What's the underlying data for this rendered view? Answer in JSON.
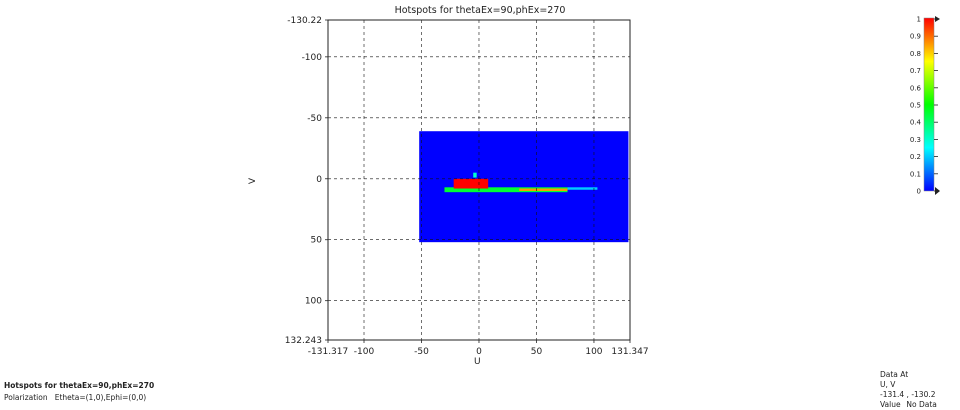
{
  "chart_data": {
    "type": "heatmap",
    "title": "Hotspots for thetaEx=90,phEx=270",
    "xlabel": "U",
    "ylabel": "V",
    "xlim": [
      -131.317,
      131.347
    ],
    "ylim": [
      -130.22,
      132.243
    ],
    "y_inverted": true,
    "x_ticks": [
      -131.317,
      -100,
      -50,
      0,
      50,
      100,
      131.347
    ],
    "y_ticks": [
      -130.22,
      -100,
      -50,
      0,
      50,
      100,
      132.243
    ],
    "grid": true,
    "data_region": {
      "u_range": [
        -52,
        130
      ],
      "v_range": [
        -39,
        52
      ],
      "background_value": 0
    },
    "hotspots": [
      {
        "u": [
          -30,
          77
        ],
        "v": [
          7,
          11
        ],
        "value": 0.45
      },
      {
        "u": [
          -22,
          8
        ],
        "v": [
          0,
          8
        ],
        "value": 1.0
      },
      {
        "u": [
          -5,
          -2
        ],
        "v": [
          -5,
          -1
        ],
        "value": 0.3
      },
      {
        "u": [
          35,
          77
        ],
        "v": [
          8,
          10
        ],
        "value": 0.85
      },
      {
        "u": [
          77,
          103
        ],
        "v": [
          7,
          9
        ],
        "value": 0.2
      }
    ],
    "colorbar": {
      "min": 0,
      "max": 1,
      "ticks": [
        1,
        0.9,
        0.8,
        0.7,
        0.6,
        0.5,
        0.4,
        0.3,
        0.2,
        0.1,
        0
      ],
      "colors": [
        "#0000ff",
        "#00ffff",
        "#00ff00",
        "#ffff00",
        "#ff0000"
      ]
    }
  },
  "info": {
    "title": "Hotspots for thetaEx=90,phEx=270",
    "polarization_label": "Polarization",
    "polarization_value": "Etheta=(1,0),Ephi=(0,0)"
  },
  "data_at": {
    "heading": "Data At",
    "uv_label": "U, V",
    "uv_value": "-131.4 , -130.2",
    "value_label": "Value",
    "value_value": "No Data"
  }
}
